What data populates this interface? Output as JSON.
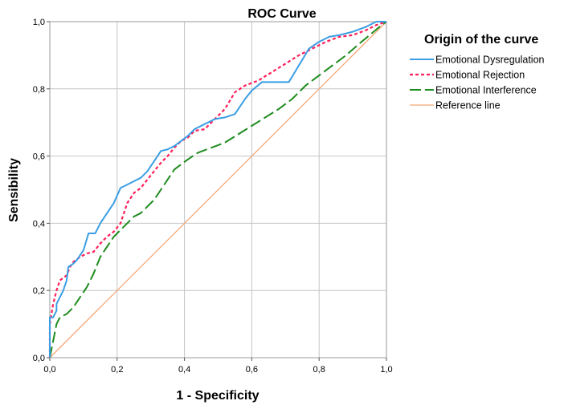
{
  "chart_data": {
    "type": "line",
    "title": "ROC Curve",
    "xlabel": "1 - Specificity",
    "ylabel": "Sensibility",
    "xlim": [
      0,
      1
    ],
    "ylim": [
      0,
      1
    ],
    "x_ticks": [
      "0,0",
      "0,2",
      "0,4",
      "0,6",
      "0,8",
      "1,0"
    ],
    "y_ticks": [
      "0,0",
      "0,2",
      "0,4",
      "0,6",
      "0,8",
      "1,0"
    ],
    "grid": true,
    "legend": {
      "title": "Origin of the curve",
      "placement": "right"
    },
    "series": [
      {
        "name": "Emotional Dysregulation",
        "color": "#3a9ee4",
        "style": "solid",
        "points": [
          [
            0,
            0
          ],
          [
            0,
            0.12
          ],
          [
            0.01,
            0.12
          ],
          [
            0.02,
            0.14
          ],
          [
            0.02,
            0.16
          ],
          [
            0.03,
            0.18
          ],
          [
            0.04,
            0.2
          ],
          [
            0.05,
            0.23
          ],
          [
            0.055,
            0.27
          ],
          [
            0.07,
            0.28
          ],
          [
            0.08,
            0.29
          ],
          [
            0.1,
            0.32
          ],
          [
            0.115,
            0.37
          ],
          [
            0.135,
            0.37
          ],
          [
            0.15,
            0.4
          ],
          [
            0.17,
            0.43
          ],
          [
            0.19,
            0.46
          ],
          [
            0.21,
            0.505
          ],
          [
            0.23,
            0.515
          ],
          [
            0.25,
            0.525
          ],
          [
            0.27,
            0.535
          ],
          [
            0.29,
            0.555
          ],
          [
            0.31,
            0.585
          ],
          [
            0.33,
            0.615
          ],
          [
            0.35,
            0.62
          ],
          [
            0.37,
            0.63
          ],
          [
            0.39,
            0.645
          ],
          [
            0.41,
            0.66
          ],
          [
            0.43,
            0.68
          ],
          [
            0.46,
            0.695
          ],
          [
            0.49,
            0.71
          ],
          [
            0.52,
            0.715
          ],
          [
            0.55,
            0.725
          ],
          [
            0.58,
            0.77
          ],
          [
            0.6,
            0.795
          ],
          [
            0.63,
            0.82
          ],
          [
            0.66,
            0.82
          ],
          [
            0.71,
            0.82
          ],
          [
            0.74,
            0.87
          ],
          [
            0.77,
            0.92
          ],
          [
            0.8,
            0.94
          ],
          [
            0.83,
            0.955
          ],
          [
            0.86,
            0.96
          ],
          [
            0.9,
            0.97
          ],
          [
            0.94,
            0.985
          ],
          [
            0.97,
            1.0
          ],
          [
            1,
            1
          ]
        ]
      },
      {
        "name": "Emotional Rejection",
        "color": "#ff1f5a",
        "style": "dotted",
        "points": [
          [
            0,
            0
          ],
          [
            0,
            0.1
          ],
          [
            0.01,
            0.16
          ],
          [
            0.02,
            0.2
          ],
          [
            0.03,
            0.23
          ],
          [
            0.05,
            0.245
          ],
          [
            0.06,
            0.27
          ],
          [
            0.07,
            0.285
          ],
          [
            0.09,
            0.3
          ],
          [
            0.11,
            0.31
          ],
          [
            0.13,
            0.315
          ],
          [
            0.15,
            0.34
          ],
          [
            0.17,
            0.36
          ],
          [
            0.19,
            0.375
          ],
          [
            0.21,
            0.4
          ],
          [
            0.23,
            0.46
          ],
          [
            0.25,
            0.49
          ],
          [
            0.27,
            0.505
          ],
          [
            0.29,
            0.53
          ],
          [
            0.31,
            0.555
          ],
          [
            0.33,
            0.58
          ],
          [
            0.35,
            0.6
          ],
          [
            0.37,
            0.625
          ],
          [
            0.39,
            0.645
          ],
          [
            0.41,
            0.655
          ],
          [
            0.43,
            0.675
          ],
          [
            0.46,
            0.68
          ],
          [
            0.49,
            0.71
          ],
          [
            0.52,
            0.74
          ],
          [
            0.55,
            0.79
          ],
          [
            0.58,
            0.81
          ],
          [
            0.62,
            0.825
          ],
          [
            0.66,
            0.85
          ],
          [
            0.7,
            0.875
          ],
          [
            0.74,
            0.9
          ],
          [
            0.78,
            0.92
          ],
          [
            0.82,
            0.94
          ],
          [
            0.86,
            0.955
          ],
          [
            0.9,
            0.96
          ],
          [
            0.94,
            0.975
          ],
          [
            0.97,
            0.99
          ],
          [
            1,
            1
          ]
        ]
      },
      {
        "name": "Emotional Interference",
        "color": "#1e8c1e",
        "style": "dashed",
        "points": [
          [
            0,
            0
          ],
          [
            0.01,
            0.05
          ],
          [
            0.02,
            0.1
          ],
          [
            0.03,
            0.12
          ],
          [
            0.05,
            0.13
          ],
          [
            0.07,
            0.15
          ],
          [
            0.09,
            0.18
          ],
          [
            0.11,
            0.21
          ],
          [
            0.13,
            0.25
          ],
          [
            0.15,
            0.3
          ],
          [
            0.17,
            0.33
          ],
          [
            0.19,
            0.36
          ],
          [
            0.21,
            0.38
          ],
          [
            0.23,
            0.4
          ],
          [
            0.25,
            0.42
          ],
          [
            0.27,
            0.43
          ],
          [
            0.29,
            0.45
          ],
          [
            0.31,
            0.47
          ],
          [
            0.33,
            0.5
          ],
          [
            0.35,
            0.53
          ],
          [
            0.37,
            0.56
          ],
          [
            0.39,
            0.575
          ],
          [
            0.41,
            0.59
          ],
          [
            0.44,
            0.61
          ],
          [
            0.48,
            0.625
          ],
          [
            0.52,
            0.64
          ],
          [
            0.56,
            0.665
          ],
          [
            0.6,
            0.69
          ],
          [
            0.64,
            0.715
          ],
          [
            0.68,
            0.74
          ],
          [
            0.72,
            0.77
          ],
          [
            0.76,
            0.81
          ],
          [
            0.8,
            0.84
          ],
          [
            0.84,
            0.87
          ],
          [
            0.88,
            0.9
          ],
          [
            0.92,
            0.935
          ],
          [
            0.95,
            0.96
          ],
          [
            0.98,
            0.985
          ],
          [
            1,
            1
          ]
        ]
      },
      {
        "name": "Reference line",
        "color": "#f5a777",
        "style": "solid",
        "points": [
          [
            0,
            0
          ],
          [
            1,
            1
          ]
        ]
      }
    ]
  }
}
